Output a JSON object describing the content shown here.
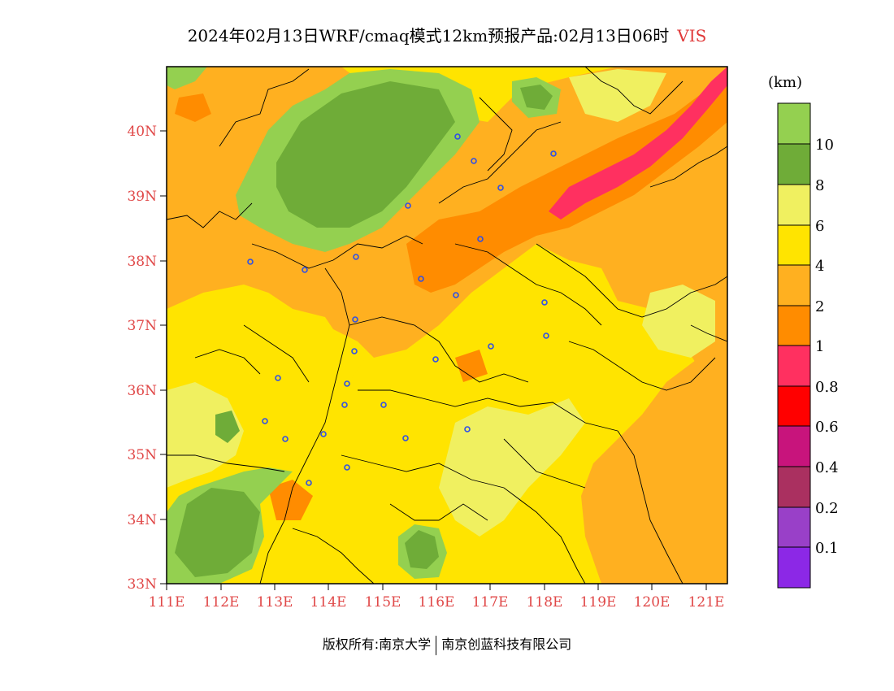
{
  "title": "2024年02月13日WRF/cmaq模式12km预报产品:02月13日06时",
  "variable": "VIS",
  "unit_label": "(km)",
  "lat_labels": [
    "40N",
    "39N",
    "38N",
    "37N",
    "36N",
    "35N",
    "34N",
    "33N"
  ],
  "lon_labels": [
    "111E",
    "112E",
    "113E",
    "114E",
    "115E",
    "116E",
    "117E",
    "118E",
    "119E",
    "120E",
    "121E"
  ],
  "colorbar": {
    "labels": [
      "10",
      "8",
      "6",
      "4",
      "2",
      "1",
      "0.8",
      "0.6",
      "0.4",
      "0.2",
      "0.1"
    ],
    "colors": [
      "#94d050",
      "#6fac38",
      "#f0f060",
      "#ffe400",
      "#ffb020",
      "#ff8c00",
      "#ff3060",
      "#ff0000",
      "#c8147c",
      "#aa3060",
      "#9940c8",
      "#8c28e6"
    ]
  },
  "palette": {
    "yellow": "#ffe400",
    "light_yellow": "#f0f060",
    "light_orange": "#ffb020",
    "orange": "#ff8c00",
    "red": "#ff3060",
    "light_green": "#94d050",
    "dark_green": "#6fac38",
    "axis_red": "#e04848",
    "city_marker": "#2f4fe6"
  },
  "footer": {
    "left": "版权所有:南京大学",
    "right": "南京创蓝科技有限公司"
  }
}
